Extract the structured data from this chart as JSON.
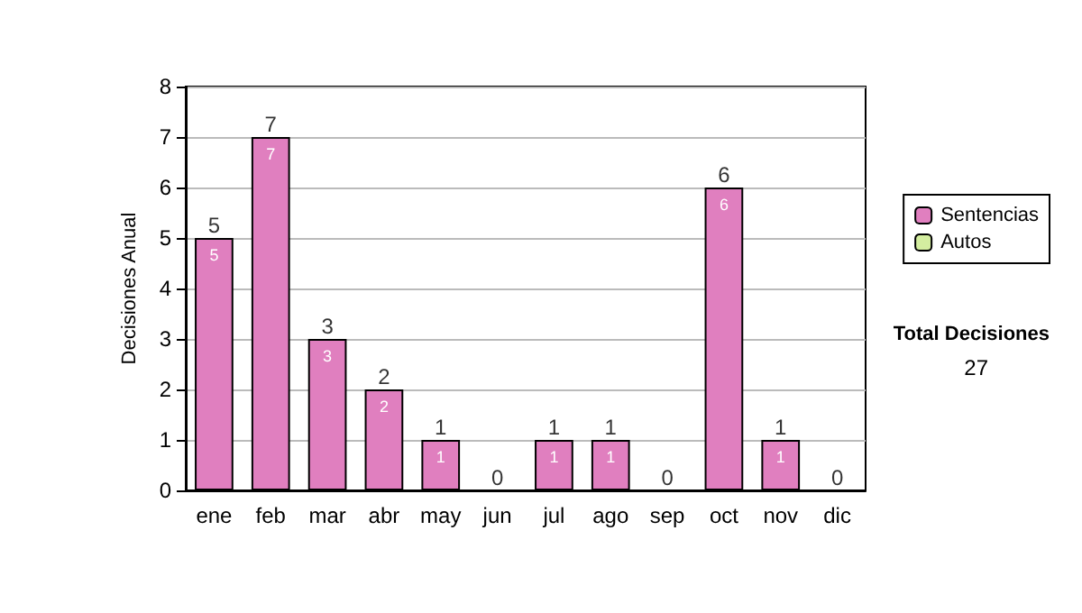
{
  "chart_data": {
    "type": "bar",
    "stacked": true,
    "ylabel": "Decisiones Anual",
    "categories": [
      "ene",
      "feb",
      "mar",
      "abr",
      "may",
      "jun",
      "jul",
      "ago",
      "sep",
      "oct",
      "nov",
      "dic"
    ],
    "series": [
      {
        "name": "Sentencias",
        "color": "#e07fbf",
        "values": [
          5,
          7,
          3,
          2,
          1,
          0,
          1,
          1,
          0,
          6,
          1,
          0
        ],
        "value_labels": [
          "5",
          "7",
          "3",
          "2",
          "1",
          null,
          "1",
          "1",
          null,
          "6",
          "1",
          null
        ]
      },
      {
        "name": "Autos",
        "color": "#d4eea0",
        "values": [
          0,
          0,
          0,
          0,
          0,
          0,
          0,
          0,
          0,
          0,
          0,
          0
        ]
      }
    ],
    "totals": [
      "5",
      "7",
      "3",
      "2",
      "1",
      "0",
      "1",
      "1",
      "0",
      "6",
      "1",
      "0"
    ],
    "ylim": [
      0,
      8
    ],
    "yticks": [
      0,
      1,
      2,
      3,
      4,
      5,
      6,
      7,
      8
    ],
    "grid": "y",
    "legend": "right",
    "annotations": [
      "Total Decisiones",
      "27"
    ]
  }
}
